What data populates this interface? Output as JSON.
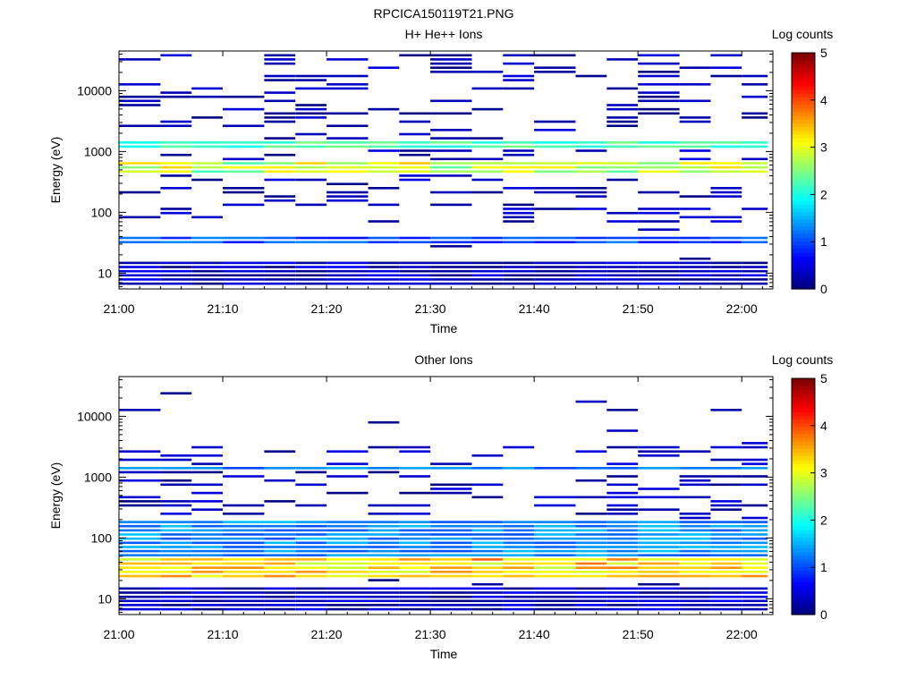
{
  "page_title": "RPCICA150119T21.PNG",
  "chart_data": [
    {
      "type": "heatmap",
      "title": "H+ He++ Ions",
      "xlabel": "Time",
      "ylabel": "Energy (eV)",
      "x_ticks": [
        "21:00",
        "21:10",
        "21:20",
        "21:30",
        "21:40",
        "21:50",
        "22:00"
      ],
      "xlim": [
        "21:00",
        "22:03"
      ],
      "y_ticks": [
        "10",
        "100",
        "1000",
        "10000"
      ],
      "ylim": [
        5.5,
        45000
      ],
      "y_scale": "log",
      "colorbar": {
        "label": "Log counts",
        "range": [
          0,
          5
        ],
        "ticks": [
          "0",
          "1",
          "2",
          "3",
          "4",
          "5"
        ],
        "colormap": "jet"
      },
      "time_bins": [
        "21:00",
        "21:04",
        "21:07",
        "21:10",
        "21:14",
        "21:17",
        "21:20",
        "21:24",
        "21:27",
        "21:30",
        "21:34",
        "21:37",
        "21:40",
        "21:44",
        "21:47",
        "21:50",
        "21:54",
        "21:57",
        "22:00"
      ],
      "features": [
        {
          "energy_range_eV": [
            1100,
            1400
          ],
          "log_counts": 2.2,
          "description_values": "persistent band ~1.2 keV"
        },
        {
          "energy_range_eV": [
            450,
            700
          ],
          "log_counts": 2.4,
          "peak": 3.2
        },
        {
          "energy_range_eV": [
            28,
            40
          ],
          "log_counts": 1.0
        },
        {
          "energy_range_eV": [
            6,
            16
          ],
          "log_counts": 0.3
        }
      ]
    },
    {
      "type": "heatmap",
      "title": "Other Ions",
      "xlabel": "Time",
      "ylabel": "Energy (eV)",
      "x_ticks": [
        "21:00",
        "21:10",
        "21:20",
        "21:30",
        "21:40",
        "21:50",
        "22:00"
      ],
      "xlim": [
        "21:00",
        "22:03"
      ],
      "y_ticks": [
        "10",
        "100",
        "1000",
        "10000"
      ],
      "ylim": [
        5.5,
        45000
      ],
      "y_scale": "log",
      "colorbar": {
        "label": "Log counts",
        "range": [
          0,
          5
        ],
        "ticks": [
          "0",
          "1",
          "2",
          "3",
          "4",
          "5"
        ],
        "colormap": "jet"
      },
      "time_bins": [
        "21:00",
        "21:04",
        "21:07",
        "21:10",
        "21:14",
        "21:17",
        "21:20",
        "21:24",
        "21:27",
        "21:30",
        "21:34",
        "21:37",
        "21:40",
        "21:44",
        "21:47",
        "21:50",
        "21:54",
        "21:57",
        "22:00"
      ],
      "features": [
        {
          "energy_range_eV": [
            22,
            45
          ],
          "log_counts": 3.0,
          "peak": 3.6
        },
        {
          "energy_range_eV": [
            45,
            200
          ],
          "log_counts": 1.3
        },
        {
          "energy_range_eV": [
            1200,
            1400
          ],
          "log_counts": 1.2
        },
        {
          "energy_range_eV": [
            6,
            16
          ],
          "log_counts": 0.3
        }
      ]
    }
  ]
}
